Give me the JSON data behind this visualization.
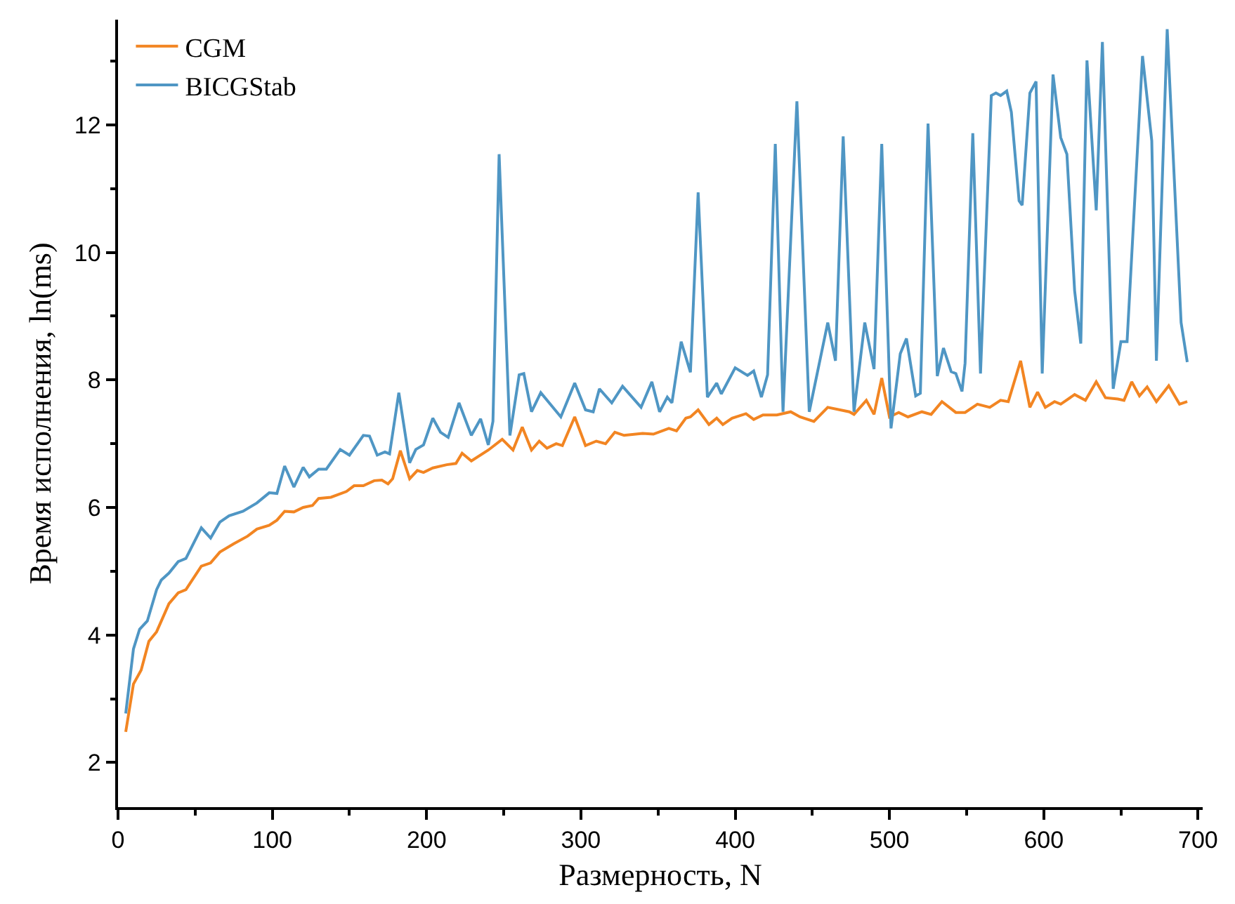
{
  "chart_data": {
    "type": "line",
    "xlabel": "Размерность, N",
    "ylabel": "Время исполнения, ln(ms)",
    "xlim": [
      0,
      703
    ],
    "ylim": [
      1.3,
      13.65
    ],
    "xticks": [
      0,
      {
        "value": 50,
        "label": null
      },
      100,
      {
        "value": 150,
        "label": null
      },
      200,
      {
        "value": 250,
        "label": null
      },
      300,
      {
        "value": 350,
        "label": null
      },
      400,
      {
        "value": 450,
        "label": null
      },
      500,
      {
        "value": 550,
        "label": null
      },
      600,
      {
        "value": 650,
        "label": null
      },
      700
    ],
    "yticks": [
      2,
      {
        "value": 3,
        "label": null
      },
      4,
      {
        "value": 5,
        "label": null
      },
      6,
      {
        "value": 7,
        "label": null
      },
      8,
      {
        "value": 9,
        "label": null
      },
      10,
      {
        "value": 11,
        "label": null
      },
      12,
      {
        "value": 13,
        "label": null
      }
    ],
    "legend": "top left",
    "line_style": "solid",
    "marker": "none",
    "series": [
      {
        "name": "CGM",
        "color": "#f28522",
        "x": [
          5,
          10,
          15,
          20,
          25,
          33,
          39,
          44,
          54,
          60,
          66,
          75,
          84,
          90,
          98,
          103,
          108,
          114,
          120,
          126,
          130,
          138,
          148,
          153,
          159,
          166,
          171,
          175,
          178,
          183,
          189,
          194,
          198,
          204,
          213,
          219,
          223,
          229,
          240,
          249,
          256,
          262,
          268,
          273,
          278,
          284,
          288,
          296,
          303,
          310,
          316,
          322,
          328,
          340,
          347,
          357,
          362,
          368,
          371,
          376,
          383,
          388,
          392,
          398,
          407,
          412,
          418,
          427,
          436,
          442,
          451,
          460,
          474,
          477,
          485,
          490,
          495,
          500,
          506,
          512,
          521,
          527,
          534,
          543,
          549,
          557,
          565,
          572,
          577,
          585,
          591,
          596,
          601,
          607,
          611,
          620,
          627,
          634,
          640,
          648,
          652,
          657,
          662,
          667,
          673,
          681,
          688,
          693
        ],
        "values": [
          2.48,
          3.23,
          3.45,
          3.9,
          4.05,
          4.49,
          4.66,
          4.71,
          5.08,
          5.13,
          5.3,
          5.43,
          5.55,
          5.66,
          5.72,
          5.8,
          5.94,
          5.93,
          6.0,
          6.03,
          6.14,
          6.16,
          6.25,
          6.34,
          6.34,
          6.42,
          6.43,
          6.37,
          6.45,
          6.89,
          6.45,
          6.58,
          6.55,
          6.62,
          6.67,
          6.69,
          6.85,
          6.73,
          6.9,
          7.07,
          6.9,
          7.26,
          6.9,
          7.04,
          6.93,
          7.0,
          6.97,
          7.42,
          6.97,
          7.04,
          7.0,
          7.18,
          7.13,
          7.16,
          7.15,
          7.24,
          7.2,
          7.4,
          7.42,
          7.53,
          7.3,
          7.4,
          7.3,
          7.4,
          7.47,
          7.38,
          7.45,
          7.45,
          7.5,
          7.42,
          7.35,
          7.57,
          7.5,
          7.46,
          7.68,
          7.46,
          8.03,
          7.42,
          7.49,
          7.42,
          7.5,
          7.46,
          7.66,
          7.49,
          7.49,
          7.62,
          7.57,
          7.68,
          7.66,
          8.3,
          7.57,
          7.81,
          7.57,
          7.66,
          7.62,
          7.77,
          7.68,
          7.97,
          7.72,
          7.7,
          7.68,
          7.97,
          7.75,
          7.89,
          7.66,
          7.91,
          7.62,
          7.66
        ]
      },
      {
        "name": "BICGStab",
        "color": "#4f96c4",
        "x": [
          5,
          10,
          14,
          19,
          25,
          28,
          33,
          39,
          44,
          54,
          60,
          66,
          72,
          81,
          90,
          98,
          103,
          108,
          114,
          120,
          124,
          130,
          135,
          144,
          150,
          159,
          163,
          168,
          173,
          176,
          182,
          189,
          193,
          198,
          204,
          209,
          214,
          221,
          229,
          235,
          240,
          243,
          247,
          254,
          260,
          263,
          268,
          274,
          287,
          296,
          303,
          308,
          312,
          320,
          327,
          339,
          346,
          351,
          356,
          359,
          365,
          371,
          376,
          382,
          388,
          391,
          400,
          408,
          412,
          417,
          421,
          426,
          431,
          440,
          448,
          460,
          465,
          470,
          477,
          484,
          490,
          495,
          501,
          507,
          511,
          517,
          520,
          525,
          531,
          535,
          540,
          543,
          547,
          549,
          554,
          559,
          566,
          569,
          572,
          576,
          579,
          584,
          586,
          591,
          595,
          599,
          606,
          611,
          615,
          620,
          624,
          628,
          634,
          638,
          645,
          650,
          654,
          664,
          670,
          673,
          680,
          689,
          693
        ],
        "values": [
          2.77,
          3.78,
          4.09,
          4.22,
          4.71,
          4.86,
          4.97,
          5.15,
          5.2,
          5.68,
          5.52,
          5.77,
          5.87,
          5.94,
          6.07,
          6.23,
          6.22,
          6.65,
          6.32,
          6.63,
          6.48,
          6.6,
          6.6,
          6.91,
          6.82,
          7.13,
          7.12,
          6.82,
          6.87,
          6.84,
          7.8,
          6.7,
          6.91,
          6.98,
          7.4,
          7.18,
          7.1,
          7.64,
          7.13,
          7.39,
          6.98,
          7.35,
          11.54,
          7.13,
          8.08,
          8.1,
          7.5,
          7.8,
          7.42,
          7.95,
          7.53,
          7.5,
          7.86,
          7.64,
          7.9,
          7.57,
          7.97,
          7.5,
          7.73,
          7.64,
          8.6,
          8.12,
          10.94,
          7.73,
          7.95,
          7.78,
          8.19,
          8.07,
          8.14,
          7.73,
          8.08,
          11.7,
          7.5,
          12.37,
          7.5,
          8.9,
          8.3,
          11.82,
          7.5,
          8.9,
          8.17,
          11.7,
          7.24,
          8.41,
          8.65,
          7.75,
          7.79,
          12.02,
          8.06,
          8.5,
          8.13,
          8.1,
          7.82,
          8.26,
          11.87,
          8.1,
          12.46,
          12.5,
          12.46,
          12.53,
          12.2,
          10.81,
          10.74,
          12.5,
          12.68,
          8.1,
          12.79,
          11.8,
          11.54,
          9.4,
          8.57,
          13.01,
          10.66,
          13.3,
          7.86,
          8.6,
          8.6,
          13.08,
          11.75,
          8.3,
          13.5,
          8.9,
          8.28
        ]
      }
    ]
  }
}
